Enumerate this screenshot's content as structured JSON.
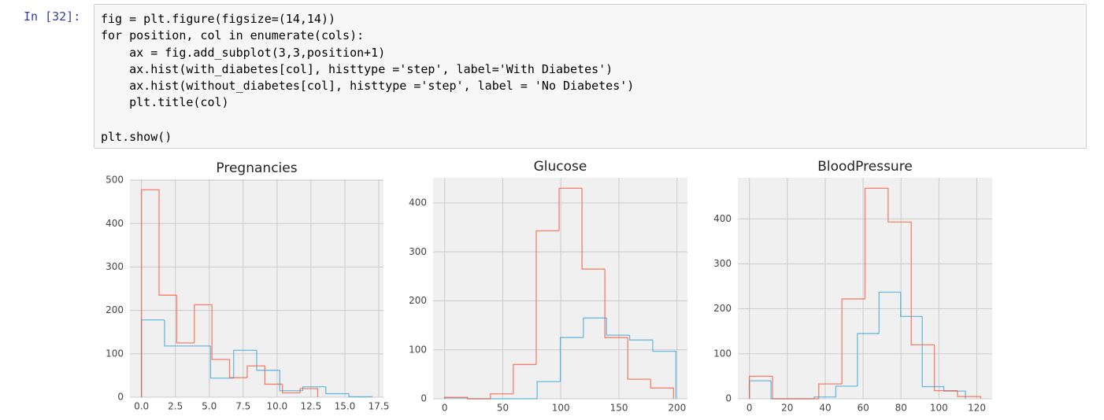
{
  "prompt": "In [32]:",
  "code": [
    [
      "fig = plt.figure(figsize=(14,14))",
      "for position, col in enumerate(cols):",
      "    ax = fig.add_subplot(3,3,position+1)",
      "    ax.hist(with_diabetes[col], histtype ='step', label='With Diabetes')",
      "    ax.hist(without_diabetes[col], histtype ='step', label = 'No Diabetes')",
      "    plt.title(col)"
    ],
    [
      "plt.show()"
    ]
  ],
  "chart_data": [
    {
      "type": "histogram",
      "title": "Pregnancies",
      "grid": true,
      "xlim": [
        -0.85,
        17.85
      ],
      "ylim": [
        0,
        502
      ],
      "xticks": [
        {
          "value": 0,
          "label": "0.0"
        },
        {
          "value": 2.5,
          "label": "2.5"
        },
        {
          "value": 5,
          "label": "5.0"
        },
        {
          "value": 7.5,
          "label": "7.5"
        },
        {
          "value": 10,
          "label": "10.0"
        },
        {
          "value": 12.5,
          "label": "12.5"
        },
        {
          "value": 15,
          "label": "15.0"
        },
        {
          "value": 17.5,
          "label": "17.5"
        }
      ],
      "yticks": [
        0,
        100,
        200,
        300,
        400,
        500
      ],
      "series": [
        {
          "color": "#30a2da",
          "bins": [
            0,
            1.7,
            3.4,
            5.1,
            6.8,
            8.5,
            10.2,
            11.9,
            13.6,
            15.3,
            17
          ],
          "values": [
            178,
            118,
            118,
            44,
            108,
            62,
            15,
            24,
            8,
            1
          ]
        },
        {
          "color": "#fc4f30",
          "bins": [
            0,
            1.3,
            2.6,
            3.9,
            5.2,
            6.5,
            7.8,
            9.1,
            10.4,
            11.7,
            13
          ],
          "values": [
            478,
            235,
            125,
            213,
            87,
            45,
            72,
            30,
            10,
            20
          ]
        }
      ]
    },
    {
      "type": "histogram",
      "title": "Glucose",
      "grid": true,
      "xlim": [
        -9.95,
        208.95
      ],
      "ylim": [
        0,
        451.5
      ],
      "xticks": [
        0,
        50,
        100,
        150,
        200
      ],
      "yticks": [
        0,
        100,
        200,
        300,
        400
      ],
      "series": [
        {
          "color": "#30a2da",
          "bins": [
            0,
            19.9,
            39.8,
            59.7,
            79.6,
            99.5,
            119.4,
            139.3,
            159.2,
            179.1,
            199
          ],
          "values": [
            2,
            0,
            0,
            0,
            35,
            125,
            165,
            130,
            120,
            97
          ]
        },
        {
          "color": "#fc4f30",
          "bins": [
            0,
            19.7,
            39.4,
            59.1,
            78.8,
            98.5,
            118.2,
            137.9,
            157.6,
            177.3,
            197
          ],
          "values": [
            3,
            0,
            10,
            70,
            343,
            430,
            265,
            125,
            40,
            22
          ]
        }
      ]
    },
    {
      "type": "histogram",
      "title": "BloodPressure",
      "grid": true,
      "xlim": [
        -6.1,
        128.1
      ],
      "ylim": [
        0,
        491.4
      ],
      "xticks": [
        0,
        20,
        40,
        60,
        80,
        100,
        120
      ],
      "yticks": [
        0,
        100,
        200,
        300,
        400
      ],
      "series": [
        {
          "color": "#30a2da",
          "bins": [
            0,
            11.4,
            22.8,
            34.2,
            45.6,
            57,
            68.4,
            79.8,
            91.2,
            102.6,
            114
          ],
          "values": [
            40,
            0,
            0,
            4,
            28,
            145,
            237,
            183,
            27,
            17
          ]
        },
        {
          "color": "#fc4f30",
          "bins": [
            0,
            12.2,
            24.4,
            36.6,
            48.8,
            61,
            73.2,
            85.4,
            97.6,
            109.8,
            122
          ],
          "values": [
            50,
            0,
            0,
            33,
            222,
            468,
            393,
            120,
            18,
            5
          ]
        }
      ]
    }
  ]
}
